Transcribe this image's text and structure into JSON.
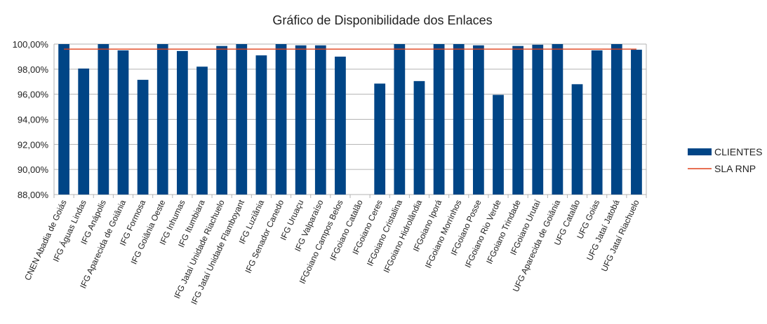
{
  "chart_data": {
    "type": "bar",
    "title": "Gráfico de Disponibilidade dos Enlaces",
    "xlabel": "",
    "ylabel": "",
    "ylim": [
      88,
      100
    ],
    "y_ticks": [
      88,
      90,
      92,
      94,
      96,
      98,
      100
    ],
    "y_tick_labels": [
      "88,00%",
      "90,00%",
      "92,00%",
      "94,00%",
      "96,00%",
      "98,00%",
      "100,00%"
    ],
    "grid": true,
    "legend_position": "right",
    "categories": [
      "CNEN Abadia de Goiás",
      "IFG Águas Lindas",
      "IFG Anápolis",
      "IFG Aparecida de Goiânia",
      "IFG Formosa",
      "IFG Goiânia Oeste",
      "IFG Inhumas",
      "IFG Itumbiara",
      "IFG Jataí Unidade Riachuelo",
      "IFG Jataí Unidade Flamboyant",
      "IFG Luziânia",
      "IFG Senador Canedo",
      "IFG Uruaçu",
      "IFG Valparaíso",
      "IFGoiano Campos Belos",
      "IFGoiano Catalão",
      "IFGoiano Ceres",
      "IFGoiano Cristalina",
      "IFGoiano Hidrolândia",
      "IFGoiano Iporá",
      "IFGoiano Morrinhos",
      "IFGoiano Posse",
      "IFGoiano Rio Verde",
      "IFGoiano Trindade",
      "IFGoiano Urutaí",
      "UFG Aparecida de Goiânia",
      "UFG Catalão",
      "UFG Goias",
      "UFG Jataí Jatobá",
      "UFG Jataí Riachuelo"
    ],
    "series": [
      {
        "name": "CLIENTES",
        "color": "#004586",
        "type": "bar",
        "values": [
          100.0,
          98.05,
          100.0,
          99.5,
          97.15,
          100.0,
          99.45,
          98.2,
          99.85,
          100.0,
          99.1,
          100.0,
          99.9,
          99.9,
          99.0,
          null,
          96.85,
          100.0,
          97.05,
          100.0,
          100.0,
          99.9,
          95.95,
          99.85,
          99.95,
          100.0,
          96.8,
          99.5,
          100.0,
          99.55
        ]
      },
      {
        "name": "SLA RNP",
        "color": "#e0401a",
        "type": "line",
        "value": 99.6
      }
    ]
  }
}
